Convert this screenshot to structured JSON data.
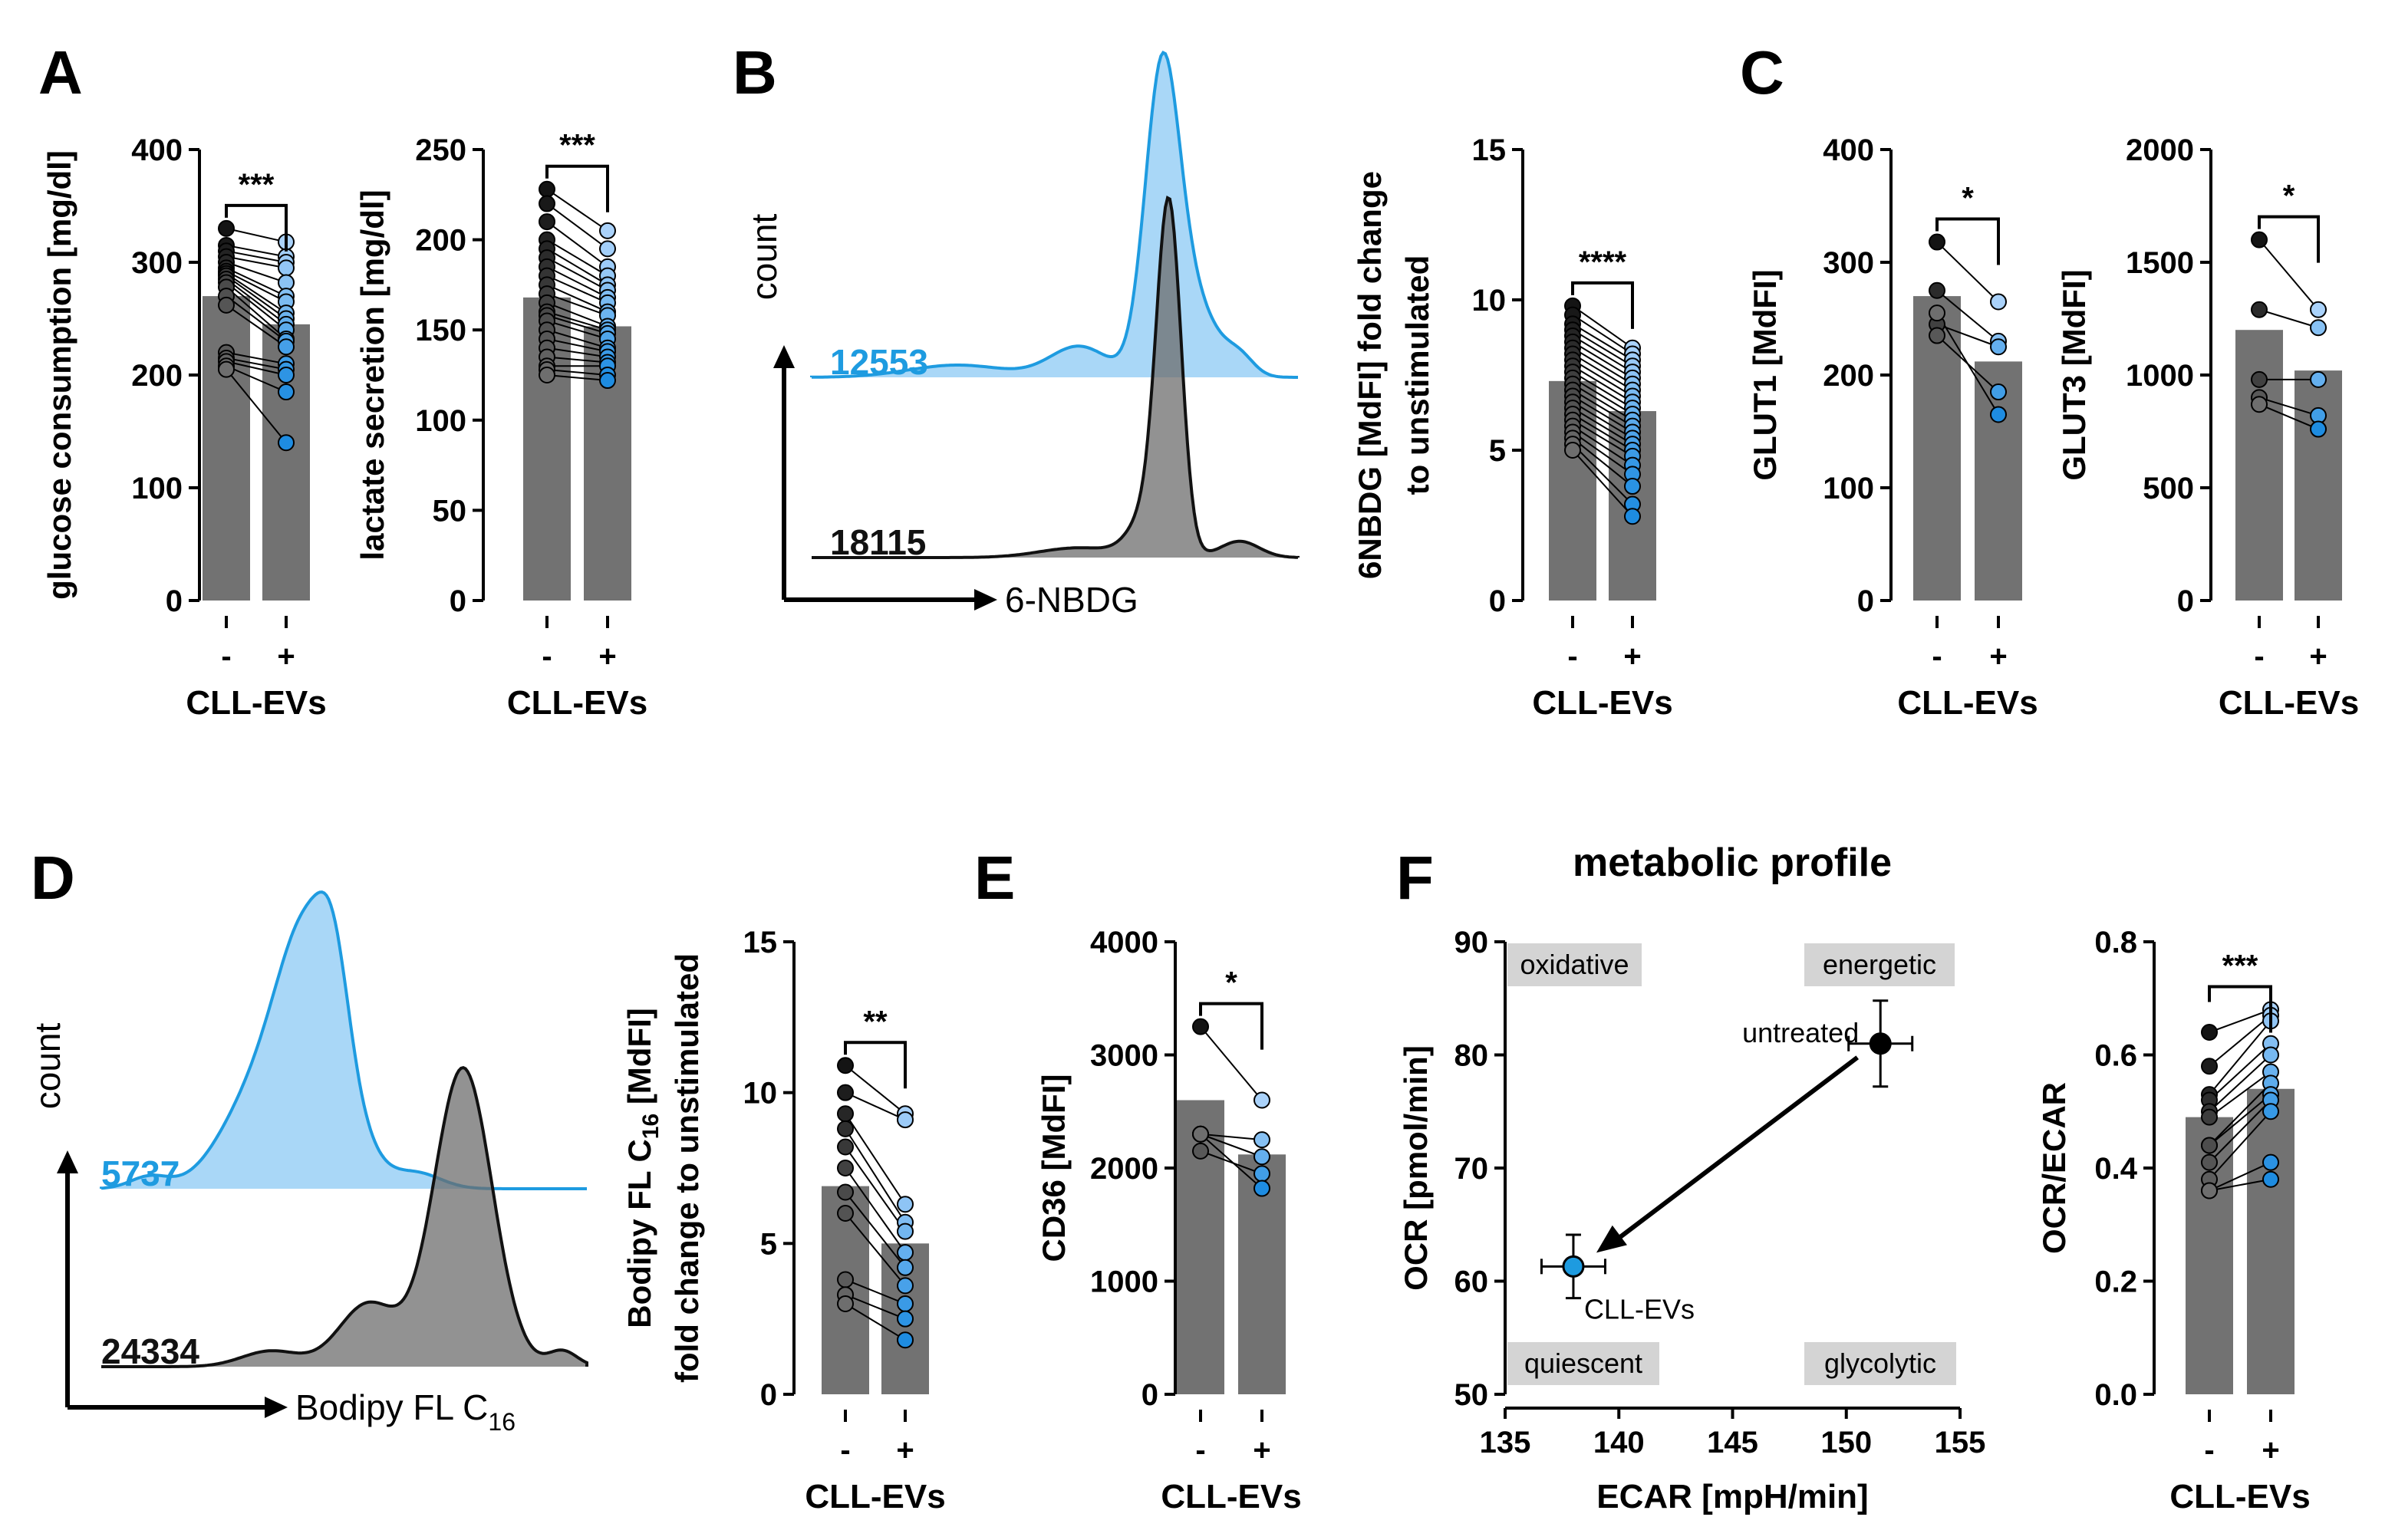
{
  "figure": {
    "panel_labels": [
      "A",
      "B",
      "C",
      "D",
      "E",
      "F"
    ],
    "accent_blue": "#1e9be0",
    "bar_gray": "#727272"
  },
  "chart_data": [
    {
      "id": "A1",
      "type": "bar",
      "categories": [
        "-",
        "+"
      ],
      "xlabel": "CLL-EVs",
      "ylabel": "glucose consumption [mg/dl]",
      "ylim": [
        0,
        400
      ],
      "yticks": [
        0,
        100,
        200,
        300,
        400
      ],
      "values": [
        270,
        245
      ],
      "significance": "***",
      "pairs": [
        [
          330,
          318
        ],
        [
          315,
          305
        ],
        [
          310,
          300
        ],
        [
          305,
          295
        ],
        [
          300,
          282
        ],
        [
          295,
          270
        ],
        [
          292,
          265
        ],
        [
          290,
          255
        ],
        [
          288,
          250
        ],
        [
          285,
          245
        ],
        [
          282,
          240
        ],
        [
          278,
          232
        ],
        [
          270,
          230
        ],
        [
          262,
          225
        ],
        [
          220,
          210
        ],
        [
          215,
          205
        ],
        [
          212,
          200
        ],
        [
          208,
          185
        ],
        [
          205,
          140
        ]
      ]
    },
    {
      "id": "A2",
      "type": "bar",
      "categories": [
        "-",
        "+"
      ],
      "xlabel": "CLL-EVs",
      "ylabel": "lactate secretion [mg/dl]",
      "ylim": [
        0,
        250
      ],
      "yticks": [
        0,
        50,
        100,
        150,
        200,
        250
      ],
      "values": [
        168,
        152
      ],
      "significance": "***",
      "pairs": [
        [
          228,
          205
        ],
        [
          220,
          195
        ],
        [
          210,
          185
        ],
        [
          200,
          180
        ],
        [
          195,
          175
        ],
        [
          190,
          172
        ],
        [
          185,
          168
        ],
        [
          180,
          165
        ],
        [
          175,
          160
        ],
        [
          170,
          158
        ],
        [
          165,
          152
        ],
        [
          160,
          150
        ],
        [
          158,
          148
        ],
        [
          155,
          145
        ],
        [
          150,
          140
        ],
        [
          145,
          138
        ],
        [
          140,
          135
        ],
        [
          135,
          132
        ],
        [
          130,
          130
        ],
        [
          128,
          125
        ],
        [
          125,
          122
        ]
      ]
    },
    {
      "id": "B_hist",
      "type": "histogram",
      "xlabel": "6-NBDG",
      "ylabel": "count",
      "series": [
        {
          "name": "12553",
          "color": "#1e9be0"
        },
        {
          "name": "18115",
          "color": "#111111"
        }
      ]
    },
    {
      "id": "B2",
      "type": "bar",
      "categories": [
        "-",
        "+"
      ],
      "xlabel": "CLL-EVs",
      "ylabel": [
        "6NBDG [MdFI] fold change",
        "to unstimulated"
      ],
      "ylim": [
        0,
        15
      ],
      "yticks": [
        0,
        5,
        10,
        15
      ],
      "values": [
        7.3,
        6.3
      ],
      "significance": "****",
      "pairs": [
        [
          9.8,
          8.4
        ],
        [
          9.5,
          8.2
        ],
        [
          9.2,
          8.0
        ],
        [
          9.0,
          7.8
        ],
        [
          8.8,
          7.6
        ],
        [
          8.6,
          7.4
        ],
        [
          8.4,
          7.2
        ],
        [
          8.2,
          7.0
        ],
        [
          8.0,
          6.8
        ],
        [
          7.8,
          6.6
        ],
        [
          7.6,
          6.4
        ],
        [
          7.4,
          6.2
        ],
        [
          7.2,
          6.0
        ],
        [
          7.0,
          5.8
        ],
        [
          6.8,
          5.6
        ],
        [
          6.6,
          5.4
        ],
        [
          6.4,
          5.2
        ],
        [
          6.2,
          5.0
        ],
        [
          6.0,
          4.8
        ],
        [
          5.8,
          4.5
        ],
        [
          5.6,
          4.2
        ],
        [
          5.4,
          3.8
        ],
        [
          5.2,
          3.2
        ],
        [
          5.0,
          2.8
        ]
      ]
    },
    {
      "id": "C1",
      "type": "bar",
      "categories": [
        "-",
        "+"
      ],
      "xlabel": "CLL-EVs",
      "ylabel": "GLUT1 [MdFI]",
      "ylim": [
        0,
        400
      ],
      "yticks": [
        0,
        100,
        200,
        300,
        400
      ],
      "values": [
        270,
        212
      ],
      "significance": "*",
      "pairs": [
        [
          318,
          265
        ],
        [
          275,
          230
        ],
        [
          245,
          225
        ],
        [
          235,
          185
        ],
        [
          255,
          165
        ]
      ]
    },
    {
      "id": "C2",
      "type": "bar",
      "categories": [
        "-",
        "+"
      ],
      "xlabel": "CLL-EVs",
      "ylabel": "GLUT3 [MdFI]",
      "ylim": [
        0,
        2000
      ],
      "yticks": [
        0,
        500,
        1000,
        1500,
        2000
      ],
      "values": [
        1200,
        1020
      ],
      "significance": "*",
      "pairs": [
        [
          1600,
          1290
        ],
        [
          1290,
          1210
        ],
        [
          980,
          980
        ],
        [
          900,
          820
        ],
        [
          870,
          760
        ]
      ]
    },
    {
      "id": "D_hist",
      "type": "histogram",
      "xlabel": "Bodipy FL C",
      "xlabel_sub": "16",
      "ylabel": "count",
      "series": [
        {
          "name": "5737",
          "color": "#1e9be0"
        },
        {
          "name": "24334",
          "color": "#111111"
        }
      ]
    },
    {
      "id": "D2",
      "type": "bar",
      "categories": [
        "-",
        "+"
      ],
      "xlabel": "CLL-EVs",
      "ylabel": [
        "Bodipy FL C",
        "16",
        " [MdFI]",
        "fold change to unstimulated"
      ],
      "ylim": [
        0,
        15
      ],
      "yticks": [
        0,
        5,
        10,
        15
      ],
      "values": [
        6.9,
        5.0
      ],
      "significance": "**",
      "pairs": [
        [
          10.9,
          9.3
        ],
        [
          10.0,
          9.1
        ],
        [
          9.3,
          6.3
        ],
        [
          8.8,
          5.7
        ],
        [
          8.2,
          5.4
        ],
        [
          7.5,
          4.7
        ],
        [
          6.7,
          4.2
        ],
        [
          6.0,
          3.6
        ],
        [
          3.8,
          3.0
        ],
        [
          3.3,
          2.5
        ],
        [
          3.0,
          1.8
        ]
      ]
    },
    {
      "id": "E",
      "type": "bar",
      "categories": [
        "-",
        "+"
      ],
      "xlabel": "CLL-EVs",
      "ylabel": "CD36 [MdFI]",
      "ylim": [
        0,
        4000
      ],
      "yticks": [
        0,
        1000,
        2000,
        3000,
        4000
      ],
      "values": [
        2600,
        2120
      ],
      "significance": "*",
      "pairs": [
        [
          3250,
          2600
        ],
        [
          2300,
          2250
        ],
        [
          2300,
          2100
        ],
        [
          2150,
          1950
        ],
        [
          2300,
          1820
        ]
      ]
    },
    {
      "id": "F1",
      "type": "scatter",
      "title": "metabolic profile",
      "xlabel": "ECAR [mpH/min]",
      "ylabel": "OCR [pmol/min]",
      "xlim": [
        135,
        155
      ],
      "xticks": [
        135,
        140,
        145,
        150,
        155
      ],
      "ylim": [
        50,
        90
      ],
      "yticks": [
        50,
        60,
        70,
        80,
        90
      ],
      "quadrants": [
        "oxidative",
        "energetic",
        "quiescent",
        "glycolytic"
      ],
      "points": [
        {
          "name": "untreated",
          "x": 151.5,
          "y": 81.0,
          "xerr": 1.4,
          "yerr": 3.8,
          "color": "#000000"
        },
        {
          "name": "CLL-EVs",
          "x": 138.0,
          "y": 61.3,
          "xerr": 1.4,
          "yerr": 2.8,
          "color": "#1e9be0"
        }
      ]
    },
    {
      "id": "F2",
      "type": "bar",
      "categories": [
        "-",
        "+"
      ],
      "xlabel": "CLL-EVs",
      "ylabel": "OCR/ECAR",
      "ylim": [
        0,
        0.8
      ],
      "yticks": [
        "0.0",
        "0.2",
        "0.4",
        "0.6",
        "0.8"
      ],
      "values": [
        0.49,
        0.54
      ],
      "significance": "***",
      "pairs": [
        [
          0.64,
          0.68
        ],
        [
          0.58,
          0.67
        ],
        [
          0.53,
          0.66
        ],
        [
          0.52,
          0.62
        ],
        [
          0.5,
          0.6
        ],
        [
          0.49,
          0.57
        ],
        [
          0.44,
          0.55
        ],
        [
          0.44,
          0.53
        ],
        [
          0.41,
          0.52
        ],
        [
          0.38,
          0.5
        ],
        [
          0.36,
          0.41
        ],
        [
          0.36,
          0.38
        ]
      ]
    }
  ]
}
